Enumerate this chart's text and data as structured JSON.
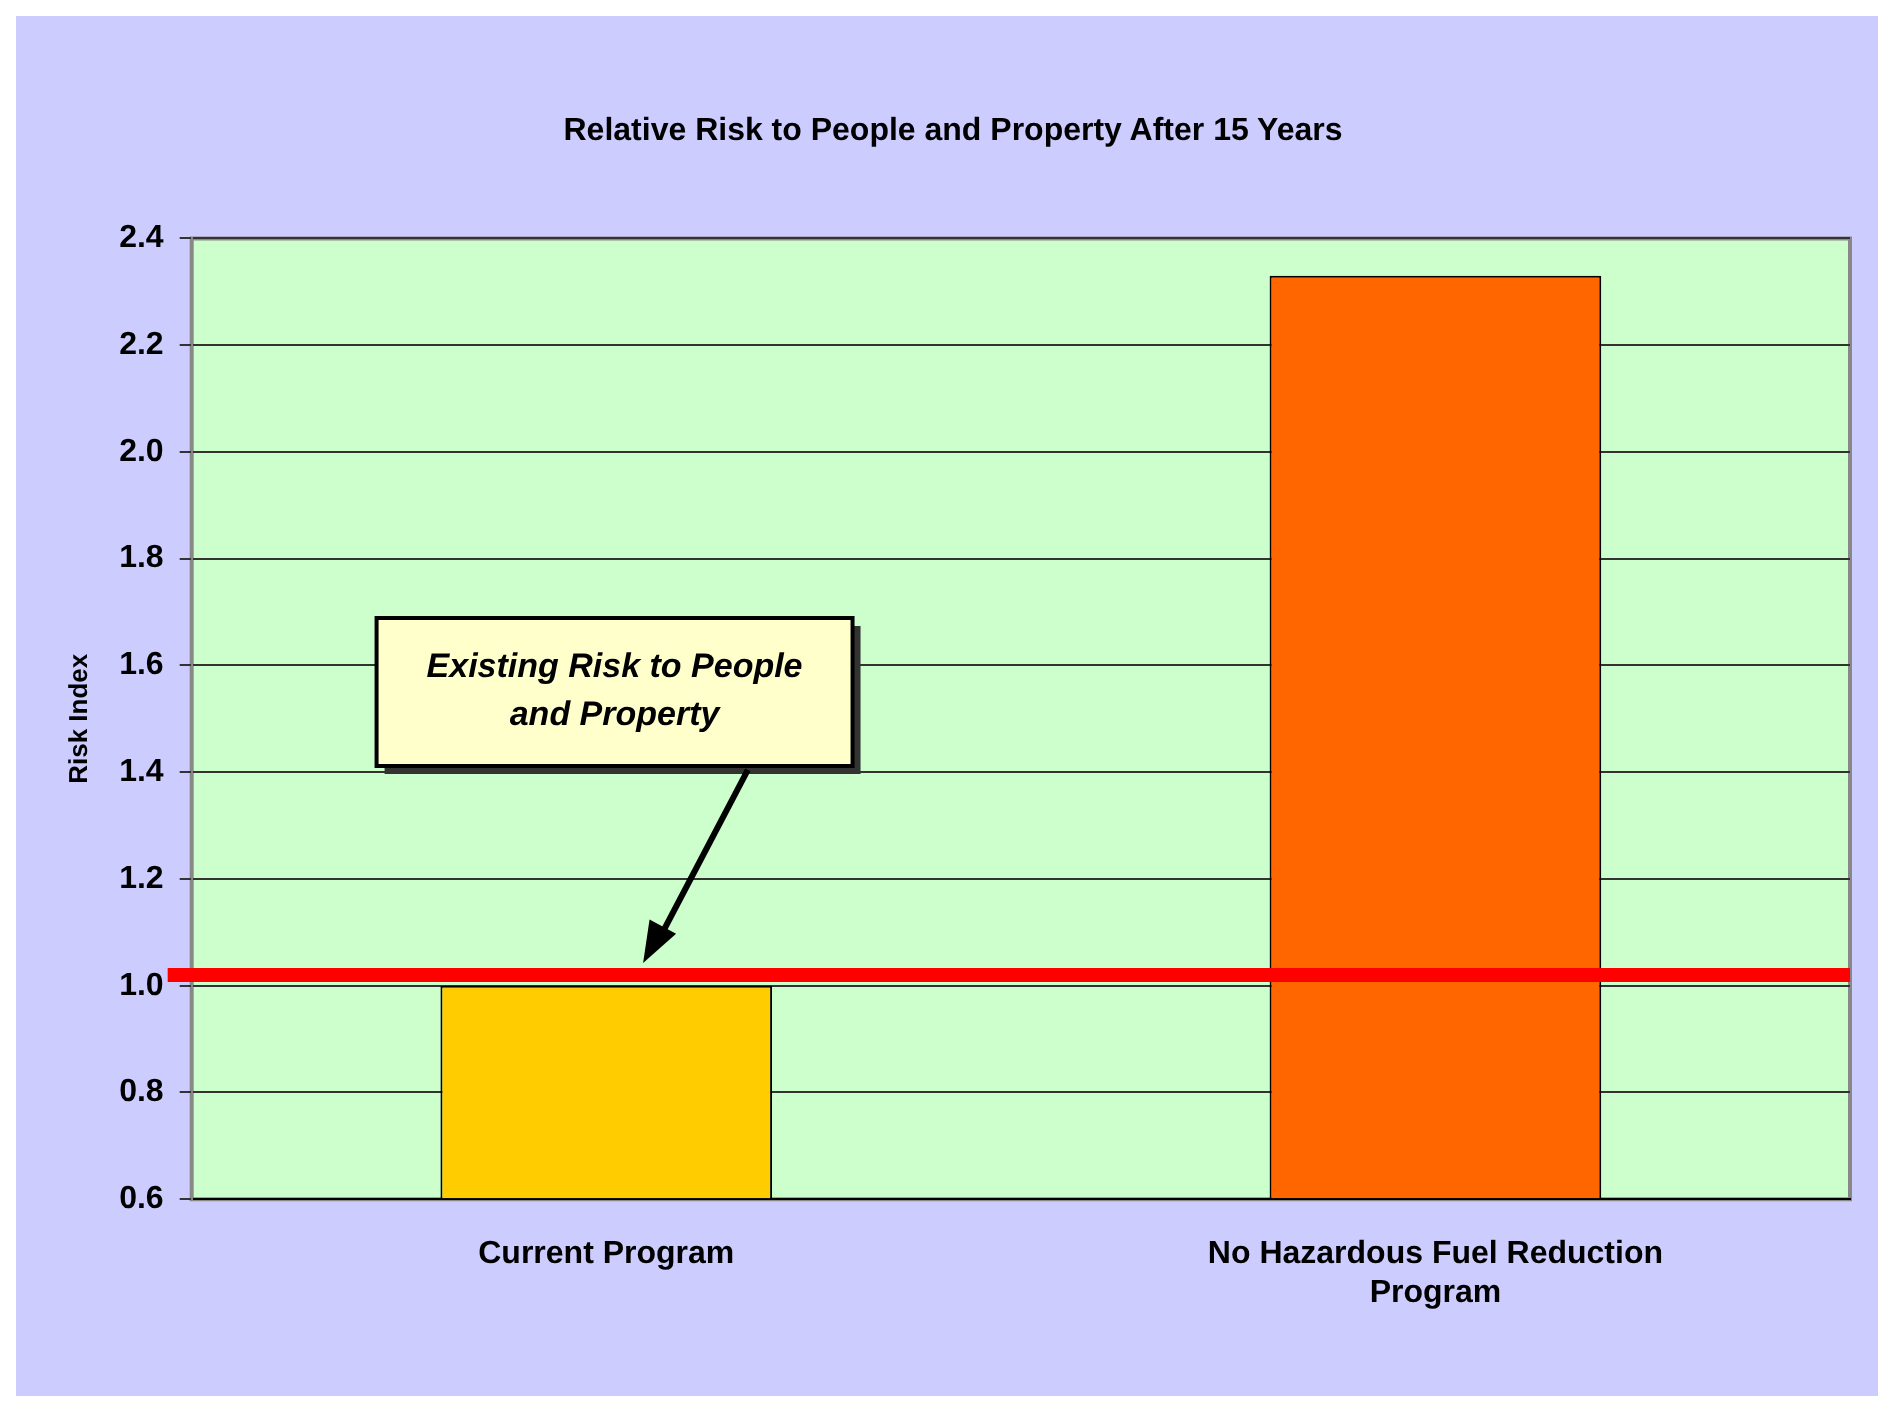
{
  "chart_data": {
    "type": "bar",
    "title": "Relative Risk to People and Property After 15 Years",
    "ylabel": "Risk Index",
    "categories": [
      "Current Program",
      "No Hazardous Fuel Reduction Program"
    ],
    "values": [
      1.0,
      2.33
    ],
    "colors": [
      "#ffcc00",
      "#ff6600"
    ],
    "ylim": [
      0.6,
      2.4
    ],
    "yticks": [
      0.6,
      0.8,
      {
        "value": 1,
        "label": "1.0"
      },
      1.2,
      1.4,
      1.6,
      1.8,
      {
        "value": 2,
        "label": "2.0"
      },
      2.2,
      2.4
    ],
    "grid": "y",
    "ref_lines": [
      {
        "axis": "y",
        "value": 1.02,
        "color": "#ff0000"
      }
    ],
    "annotations": [
      "Existing Risk to People and Property"
    ]
  }
}
